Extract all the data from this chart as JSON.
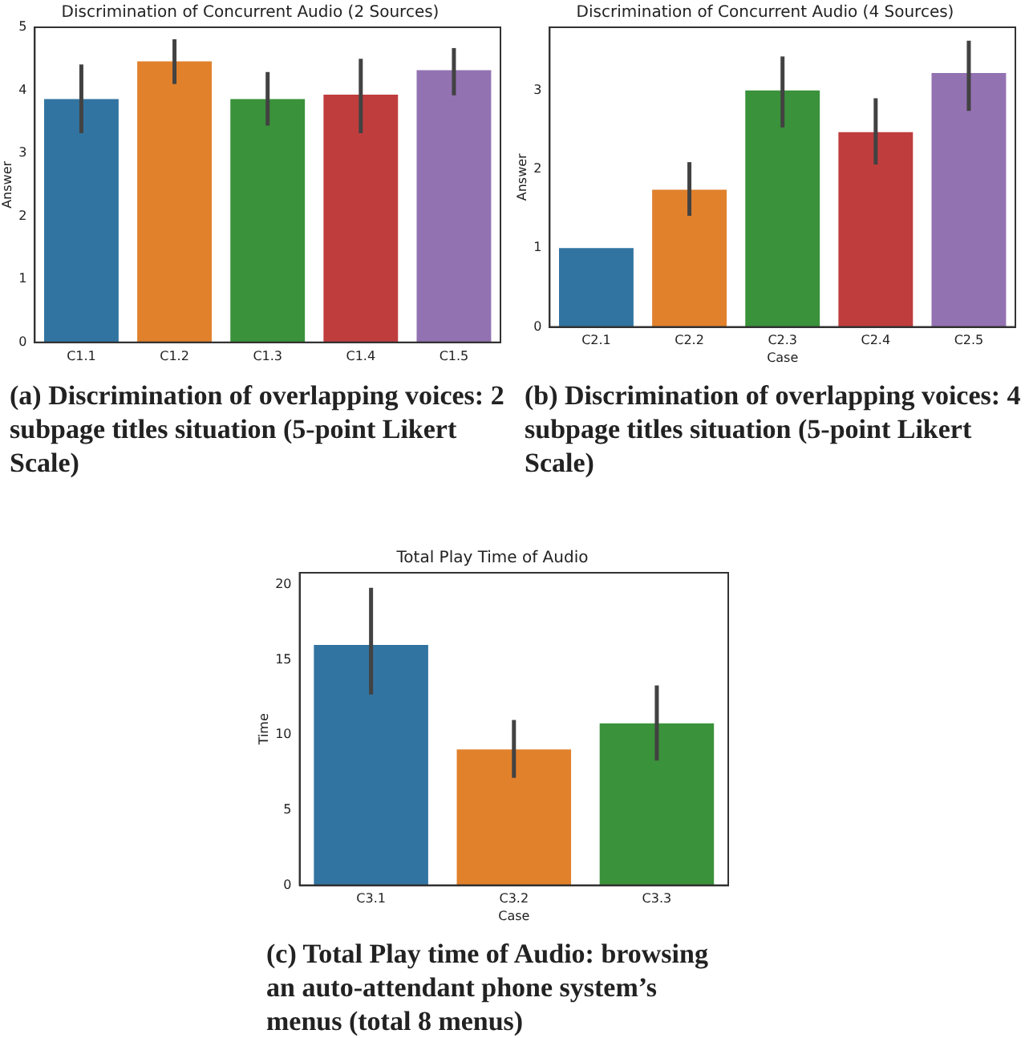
{
  "chart_data": [
    {
      "type": "bar",
      "title": "Discrimination of Concurrent Audio (2 Sources)",
      "ylabel": "Answer",
      "categories": [
        "C1.1",
        "C1.2",
        "C1.3",
        "C1.4",
        "C1.5"
      ],
      "values": [
        3.86,
        4.46,
        3.86,
        3.93,
        4.32
      ],
      "colors": [
        "#3274a1",
        "#e1812c",
        "#3a923a",
        "#c03d3e",
        "#9372b2"
      ],
      "errors": [
        [
          3.32,
          4.41
        ],
        [
          4.1,
          4.81
        ],
        [
          3.44,
          4.29
        ],
        [
          3.32,
          4.5
        ],
        [
          3.92,
          4.67
        ]
      ],
      "ylim": [
        0,
        5
      ],
      "yticks": [
        0,
        1,
        2,
        3,
        4,
        5
      ],
      "grid": false,
      "legend": false,
      "annotations": [
        "(a) Discrimination of overlapping voices: 2 subpage titles situation (5-point Likert Scale)"
      ]
    },
    {
      "type": "bar",
      "title": "Discrimination of Concurrent Audio (4 Sources)",
      "xlabel": "Case",
      "ylabel": "Answer",
      "categories": [
        "C2.1",
        "C2.2",
        "C2.3",
        "C2.4",
        "C2.5"
      ],
      "values": [
        1,
        1.74,
        3,
        2.47,
        3.22
      ],
      "colors": [
        "#3274a1",
        "#e1812c",
        "#3a923a",
        "#c03d3e",
        "#9372b2"
      ],
      "errors": [
        null,
        [
          1.41,
          2.09
        ],
        [
          2.53,
          3.43
        ],
        [
          2.06,
          2.9
        ],
        [
          2.74,
          3.63
        ]
      ],
      "ylim": [
        0,
        3.8
      ],
      "yticks": [
        0,
        1,
        2,
        3
      ],
      "grid": false,
      "legend": false,
      "annotations": [
        "(b) Discrimination of overlapping voices: 4 subpage titles situation (5-point Likert Scale)"
      ]
    },
    {
      "type": "bar",
      "title": "Total Play Time of Audio",
      "xlabel": "Case",
      "ylabel": "Time",
      "categories": [
        "C3.1",
        "C3.2",
        "C3.3"
      ],
      "values": [
        16,
        9.04,
        10.78
      ],
      "colors": [
        "#3274a1",
        "#e1812c",
        "#3a923a"
      ],
      "errors": [
        [
          12.7,
          19.8
        ],
        [
          7.15,
          11
        ],
        [
          8.3,
          13.3
        ]
      ],
      "ylim": [
        0,
        20.8
      ],
      "yticks": [
        0,
        5,
        10,
        15,
        20
      ],
      "grid": false,
      "legend": false,
      "annotations": [
        "(c) Total Play time of Audio: browsing an auto-attendant phone system’s menus (total 8 menus)"
      ]
    }
  ]
}
